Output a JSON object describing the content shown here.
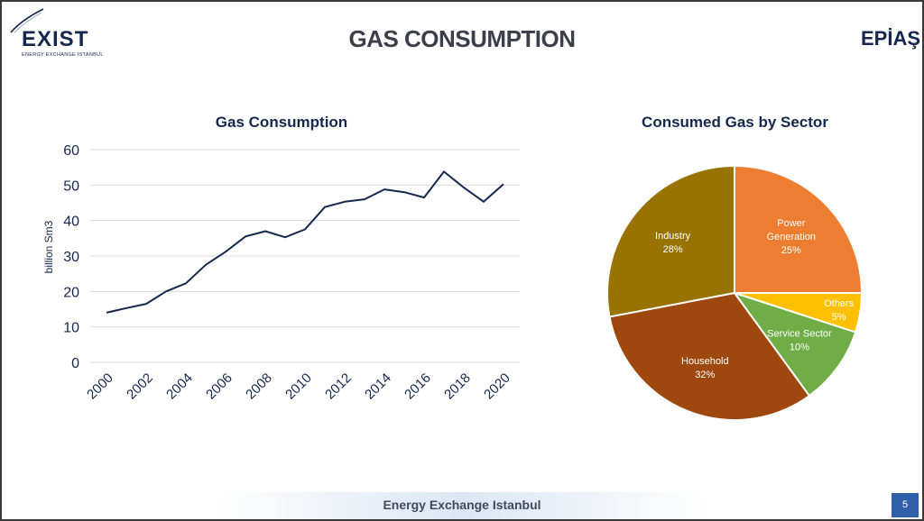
{
  "header": {
    "logo_left_text": "EXIST",
    "logo_left_subtext": "ENERGY EXCHANGE ISTANBUL",
    "title": "GAS CONSUMPTION",
    "logo_right_text": "EPİAŞ"
  },
  "footer": {
    "text": "Energy Exchange Istanbul",
    "page_number": "5"
  },
  "colors": {
    "title_navy": "#16274f",
    "line": "#16274f",
    "grid": "#d9d9d9",
    "page_badge": "#2f5fa8"
  },
  "chart_data": [
    {
      "type": "line",
      "title": "Gas Consumption",
      "xlabel": "",
      "ylabel": "billion Sm3",
      "ylim": [
        0,
        60
      ],
      "yticks": [
        "0",
        "10",
        "20",
        "30",
        "40",
        "50",
        "60"
      ],
      "xtick_labels": [
        "2000",
        "2002",
        "2004",
        "2006",
        "2008",
        "2010",
        "2012",
        "2014",
        "2016",
        "2018",
        "2020"
      ],
      "grid": true,
      "series": [
        {
          "x": [
            2000,
            2001,
            2002,
            2003,
            2004,
            2005,
            2006,
            2007,
            2008,
            2009,
            2010,
            2011,
            2012,
            2013,
            2014,
            2015,
            2016,
            2017,
            2018,
            2019,
            2020
          ],
          "values": [
            14,
            15.3,
            16.5,
            20,
            22.3,
            27.5,
            31.2,
            35.5,
            37,
            35.3,
            37.5,
            43.8,
            45.3,
            46,
            48.8,
            48,
            46.5,
            53.8,
            49.3,
            45.3,
            50.3
          ]
        }
      ]
    },
    {
      "type": "pie",
      "title": "Consumed Gas by Sector",
      "slices": [
        {
          "label": [
            "Power",
            "Generation"
          ],
          "value": 25,
          "display": "25%",
          "color": "#ed7d31",
          "label_color": "#ffffff"
        },
        {
          "label": [
            "Others"
          ],
          "value": 5,
          "display": "5%",
          "color": "#ffc000",
          "label_color": "#ffffff"
        },
        {
          "label": [
            "Service Sector"
          ],
          "value": 10,
          "display": "10%",
          "color": "#70ad47",
          "label_color": "#ffffff"
        },
        {
          "label": [
            "Household"
          ],
          "value": 32,
          "display": "32%",
          "color": "#9e480e",
          "label_color": "#ffffff"
        },
        {
          "label": [
            "Industry"
          ],
          "value": 28,
          "display": "28%",
          "color": "#997300",
          "label_color": "#ffffff"
        }
      ]
    }
  ]
}
